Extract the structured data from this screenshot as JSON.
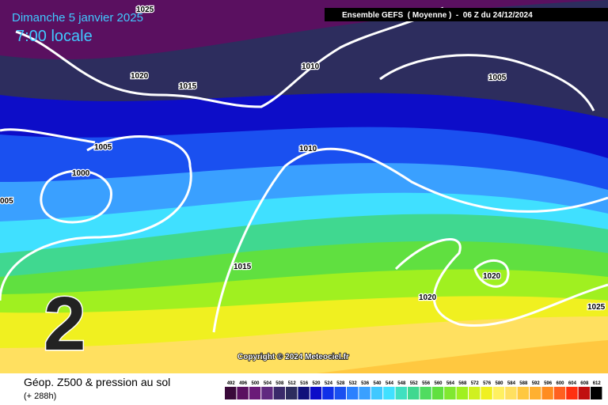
{
  "header": {
    "date": "Dimanche 5 janvier 2025",
    "time": "7:00 locale",
    "run": "Ensemble GEFS  ( Moyenne )  -  06 Z du 24/12/2024",
    "lead_digit": "2",
    "copyright": "Copyright © 2024 Meteociel.fr"
  },
  "isobar_labels": [
    "1025",
    "1020",
    "1015",
    "1010",
    "1005",
    "1005",
    "1000",
    "005",
    "1010",
    "1015",
    "1020",
    "1020",
    "1025"
  ],
  "footer": {
    "title": "Géop. Z500 & pression au sol",
    "lead": "(+ 288h)"
  },
  "colorbar": {
    "ticks": [
      492,
      496,
      500,
      504,
      508,
      512,
      516,
      520,
      524,
      528,
      532,
      536,
      540,
      544,
      548,
      552,
      556,
      560,
      564,
      568,
      572,
      576,
      580,
      584,
      588,
      592,
      596,
      600,
      604,
      608,
      612
    ],
    "colors": [
      "#3a0a3a",
      "#5a1060",
      "#6a1a78",
      "#602a80",
      "#3a2a6a",
      "#2d2d5e",
      "#10107a",
      "#0d0dc8",
      "#1030e8",
      "#1a50f0",
      "#2a80ff",
      "#3aa0ff",
      "#40c8ff",
      "#40e0ff",
      "#40e0c0",
      "#40d890",
      "#50dc60",
      "#60e040",
      "#80e830",
      "#a0f020",
      "#d0f020",
      "#f0f020",
      "#fff060",
      "#ffe060",
      "#ffc840",
      "#ffb030",
      "#ff8c20",
      "#ff6020",
      "#ff3010",
      "#c01010",
      "#000000"
    ]
  }
}
